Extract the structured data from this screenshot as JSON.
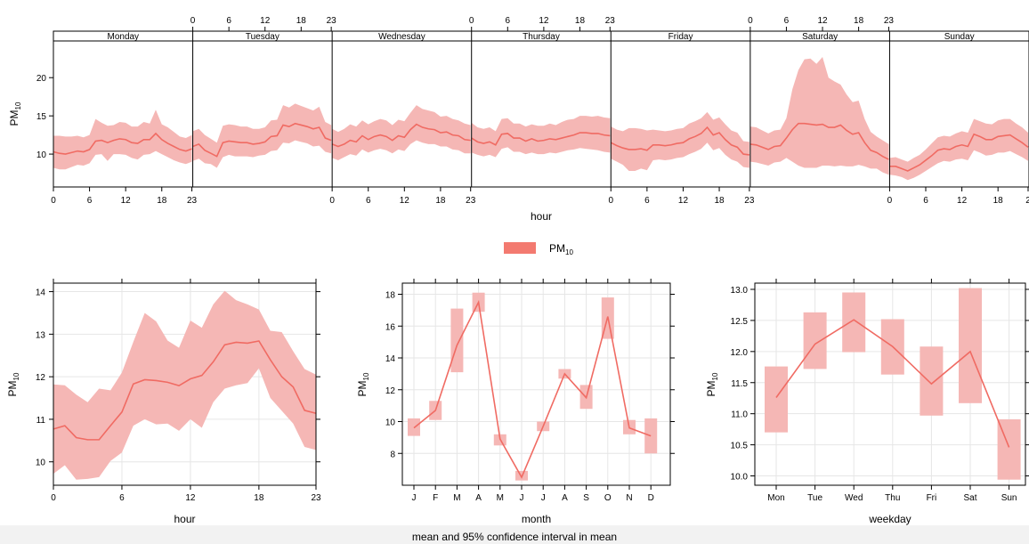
{
  "chart_data": [
    {
      "type": "area",
      "xlabel": "hour",
      "ylabel": "PM",
      "ylabel_sub": "10",
      "yticks": [
        10,
        15,
        20
      ],
      "ylim": [
        5.7,
        24.8
      ],
      "strips": [
        "Monday",
        "Tuesday",
        "Wednesday",
        "Thursday",
        "Friday",
        "Saturday",
        "Sunday"
      ],
      "hour_ticks": [
        0,
        6,
        12,
        18,
        23
      ],
      "hour_ticks_last_label": "2",
      "legend": {
        "label": "PM",
        "sub": "10",
        "position": "top"
      },
      "series": [
        {
          "days": [
            {
              "mean": [
                10.3,
                10.1,
                10.0,
                10.2,
                10.4,
                10.3,
                10.6,
                11.7,
                11.8,
                11.5,
                11.8,
                12.0,
                11.9,
                11.5,
                11.4,
                11.9,
                11.9,
                12.7,
                11.9,
                11.4,
                11.0,
                10.6,
                10.4,
                10.7
              ],
              "lower": [
                8.2,
                8.0,
                8.0,
                8.3,
                8.6,
                8.5,
                8.8,
                9.9,
                10.0,
                9.1,
                10.0,
                10.0,
                9.9,
                9.5,
                9.3,
                9.9,
                10.0,
                10.4,
                10.0,
                9.6,
                9.2,
                8.9,
                8.7,
                9.0
              ],
              "upper": [
                12.4,
                12.4,
                12.3,
                12.3,
                12.4,
                12.2,
                12.5,
                14.6,
                14.1,
                13.7,
                13.8,
                14.2,
                14.1,
                13.6,
                13.6,
                14.2,
                14.0,
                15.8,
                13.9,
                13.5,
                12.9,
                12.3,
                12.1,
                12.5
              ]
            },
            {
              "mean": [
                11.0,
                11.3,
                10.5,
                10.1,
                9.7,
                11.5,
                11.7,
                11.6,
                11.5,
                11.5,
                11.3,
                11.4,
                11.6,
                12.3,
                12.4,
                13.8,
                13.6,
                14.0,
                13.8,
                13.6,
                13.3,
                13.5,
                12.1,
                11.8
              ],
              "lower": [
                9.1,
                9.4,
                8.8,
                8.7,
                8.2,
                9.6,
                9.9,
                9.7,
                9.7,
                9.7,
                9.6,
                9.8,
                9.9,
                10.4,
                10.5,
                11.5,
                11.4,
                11.8,
                11.6,
                11.4,
                11.0,
                11.1,
                10.3,
                10.1
              ],
              "upper": [
                13.0,
                13.3,
                12.5,
                12.0,
                11.5,
                13.7,
                13.9,
                13.8,
                13.6,
                13.6,
                13.3,
                13.3,
                13.5,
                14.4,
                14.5,
                16.4,
                16.1,
                16.6,
                16.3,
                16.0,
                15.7,
                16.2,
                14.2,
                13.8
              ]
            },
            {
              "mean": [
                11.3,
                11.0,
                11.3,
                11.8,
                11.6,
                12.4,
                11.9,
                12.3,
                12.5,
                12.3,
                11.8,
                12.4,
                12.2,
                13.2,
                13.9,
                13.5,
                13.3,
                13.2,
                12.8,
                12.9,
                12.5,
                12.4,
                11.9,
                11.8
              ],
              "lower": [
                9.5,
                9.2,
                9.6,
                10.0,
                9.8,
                10.6,
                10.2,
                10.5,
                10.7,
                10.5,
                10.1,
                10.6,
                10.4,
                11.3,
                11.8,
                11.5,
                11.3,
                11.3,
                11.0,
                11.0,
                10.6,
                10.5,
                10.1,
                10.1
              ],
              "upper": [
                13.3,
                12.9,
                13.3,
                13.9,
                13.6,
                14.4,
                13.9,
                14.3,
                14.6,
                14.4,
                13.8,
                14.5,
                14.3,
                15.4,
                16.4,
                15.9,
                15.7,
                15.5,
                14.9,
                15.0,
                14.6,
                14.4,
                14.0,
                13.8
              ]
            },
            {
              "mean": [
                12.1,
                11.6,
                11.4,
                11.6,
                11.2,
                12.6,
                12.7,
                12.1,
                12.1,
                11.7,
                12.0,
                11.7,
                11.8,
                12.0,
                11.9,
                12.1,
                12.3,
                12.5,
                12.8,
                12.8,
                12.7,
                12.7,
                12.5,
                12.4
              ],
              "lower": [
                10.2,
                9.9,
                9.7,
                9.9,
                9.6,
                10.7,
                10.9,
                10.3,
                10.3,
                10.0,
                10.2,
                10.0,
                10.0,
                10.2,
                10.1,
                10.3,
                10.5,
                10.6,
                10.8,
                10.7,
                10.6,
                10.5,
                10.3,
                10.2
              ],
              "upper": [
                14.1,
                13.5,
                13.3,
                13.5,
                13.0,
                14.6,
                14.7,
                14.0,
                14.0,
                13.6,
                13.9,
                13.7,
                13.7,
                14.0,
                13.8,
                14.2,
                14.5,
                14.6,
                15.0,
                15.0,
                14.9,
                15.0,
                14.8,
                14.7
              ]
            },
            {
              "mean": [
                11.5,
                11.1,
                10.8,
                10.6,
                10.6,
                10.7,
                10.5,
                11.2,
                11.2,
                11.1,
                11.2,
                11.4,
                11.5,
                12.0,
                12.3,
                12.7,
                13.5,
                12.5,
                12.8,
                11.9,
                11.2,
                10.9,
                10.0,
                9.9
              ],
              "lower": [
                9.4,
                9.0,
                8.6,
                7.8,
                7.8,
                8.1,
                7.9,
                9.2,
                9.3,
                9.2,
                9.3,
                9.5,
                9.6,
                10.0,
                10.3,
                10.7,
                11.5,
                10.5,
                10.8,
                9.9,
                9.3,
                9.0,
                8.3,
                8.2
              ],
              "upper": [
                13.6,
                13.2,
                13.0,
                13.4,
                13.4,
                13.3,
                13.1,
                13.2,
                13.1,
                13.0,
                13.1,
                13.3,
                13.4,
                14.0,
                14.3,
                14.7,
                15.5,
                14.5,
                14.8,
                13.9,
                13.1,
                12.8,
                11.7,
                11.6
              ]
            },
            {
              "mean": [
                11.3,
                11.2,
                10.9,
                10.6,
                11.0,
                11.1,
                12.1,
                13.2,
                14.0,
                14.0,
                13.9,
                13.8,
                13.9,
                13.5,
                13.5,
                13.8,
                13.1,
                12.6,
                12.8,
                11.5,
                10.5,
                10.2,
                9.7,
                9.3
              ],
              "lower": [
                9.0,
                8.9,
                8.7,
                8.5,
                8.9,
                9.0,
                9.5,
                9.0,
                8.5,
                8.2,
                8.2,
                8.2,
                8.5,
                8.5,
                8.4,
                8.5,
                8.4,
                8.4,
                8.6,
                8.4,
                8.1,
                8.1,
                7.6,
                7.3
              ],
              "upper": [
                13.6,
                13.5,
                13.1,
                12.7,
                13.1,
                13.2,
                14.7,
                18.5,
                21.0,
                22.4,
                22.5,
                21.8,
                22.7,
                20.0,
                19.5,
                19.1,
                17.8,
                16.8,
                17.0,
                14.6,
                12.9,
                12.3,
                11.8,
                11.3
              ]
            },
            {
              "mean": [
                8.4,
                8.4,
                8.1,
                7.8,
                8.2,
                8.6,
                9.2,
                9.8,
                10.5,
                10.7,
                10.6,
                11.0,
                11.2,
                11.0,
                12.6,
                12.3,
                11.9,
                11.9,
                12.3,
                12.4,
                12.5,
                12.0,
                11.5,
                10.9
              ],
              "lower": [
                7.3,
                7.2,
                7.0,
                6.6,
                6.9,
                7.3,
                7.8,
                8.3,
                8.8,
                9.1,
                9.0,
                9.3,
                9.4,
                9.2,
                10.5,
                10.2,
                9.8,
                9.9,
                10.2,
                10.2,
                10.4,
                10.0,
                9.6,
                9.1
              ],
              "upper": [
                9.5,
                9.6,
                9.3,
                9.0,
                9.5,
                9.9,
                10.6,
                11.4,
                12.2,
                12.4,
                12.3,
                12.7,
                13.0,
                12.8,
                14.6,
                14.3,
                14.0,
                13.9,
                14.4,
                14.6,
                14.6,
                14.0,
                13.5,
                12.8
              ]
            }
          ]
        }
      ]
    },
    {
      "type": "area",
      "xlabel": "hour",
      "ylabel": "PM",
      "ylabel_sub": "10",
      "xticks": [
        0,
        6,
        12,
        18,
        23
      ],
      "yticks": [
        10,
        11,
        12,
        13,
        14
      ],
      "ylim": [
        9.45,
        14.2
      ],
      "x": [
        0,
        1,
        2,
        3,
        4,
        5,
        6,
        7,
        8,
        9,
        10,
        11,
        12,
        13,
        14,
        15,
        16,
        17,
        18,
        19,
        20,
        21,
        22,
        23
      ],
      "mean": [
        10.77,
        10.85,
        10.57,
        10.52,
        10.52,
        10.85,
        11.17,
        11.83,
        11.93,
        11.91,
        11.87,
        11.79,
        11.95,
        12.03,
        12.35,
        12.75,
        12.81,
        12.79,
        12.84,
        12.4,
        12.0,
        11.76,
        11.21,
        11.14
      ],
      "lower": [
        9.72,
        9.92,
        9.58,
        9.6,
        9.64,
        10.02,
        10.22,
        10.85,
        11.0,
        10.88,
        10.9,
        10.73,
        11.0,
        10.8,
        11.4,
        11.72,
        11.8,
        11.85,
        12.2,
        11.5,
        11.2,
        10.9,
        10.35,
        10.28
      ],
      "upper": [
        11.82,
        11.8,
        11.58,
        11.4,
        11.72,
        11.68,
        12.1,
        12.82,
        13.5,
        13.3,
        12.85,
        12.68,
        13.32,
        13.15,
        13.7,
        14.02,
        13.8,
        13.7,
        13.58,
        13.08,
        13.05,
        12.6,
        12.18,
        12.05
      ]
    },
    {
      "type": "line",
      "xlabel": "month",
      "ylabel": "PM",
      "ylabel_sub": "10",
      "categories": [
        "J",
        "F",
        "M",
        "A",
        "M",
        "J",
        "J",
        "A",
        "S",
        "O",
        "N",
        "D"
      ],
      "yticks": [
        8,
        10,
        12,
        14,
        16,
        18
      ],
      "ylim": [
        6.0,
        18.7
      ],
      "mean": [
        9.6,
        10.7,
        14.8,
        17.5,
        8.9,
        6.5,
        9.7,
        13.0,
        11.5,
        16.6,
        9.6,
        9.1
      ],
      "lower": [
        9.1,
        10.1,
        13.1,
        16.9,
        8.5,
        6.3,
        9.4,
        12.7,
        10.8,
        15.2,
        9.2,
        8.0
      ],
      "upper": [
        10.2,
        11.3,
        17.1,
        18.1,
        9.2,
        6.9,
        10.0,
        13.3,
        12.3,
        17.8,
        10.1,
        10.2
      ]
    },
    {
      "type": "line",
      "xlabel": "weekday",
      "ylabel": "PM",
      "ylabel_sub": "10",
      "categories": [
        "Mon",
        "Tue",
        "Wed",
        "Thu",
        "Fri",
        "Sat",
        "Sun"
      ],
      "yticks": [
        "10.0",
        "10.5",
        "11.0",
        "11.5",
        "12.0",
        "12.5",
        "13.0"
      ],
      "ylim": [
        9.85,
        13.1
      ],
      "mean": [
        11.26,
        12.12,
        12.51,
        12.08,
        11.48,
        12.0,
        10.46
      ],
      "lower": [
        10.7,
        11.72,
        11.99,
        11.63,
        10.97,
        11.17,
        9.94
      ],
      "upper": [
        11.76,
        12.63,
        12.95,
        12.52,
        12.08,
        13.02,
        10.91
      ]
    }
  ],
  "caption": "mean and 95% confidence interval in mean",
  "colors": {
    "line": "#f06b63",
    "band": "#f5b7b5",
    "legend_key": "#f37a70",
    "grid": "#e6e6e6"
  }
}
